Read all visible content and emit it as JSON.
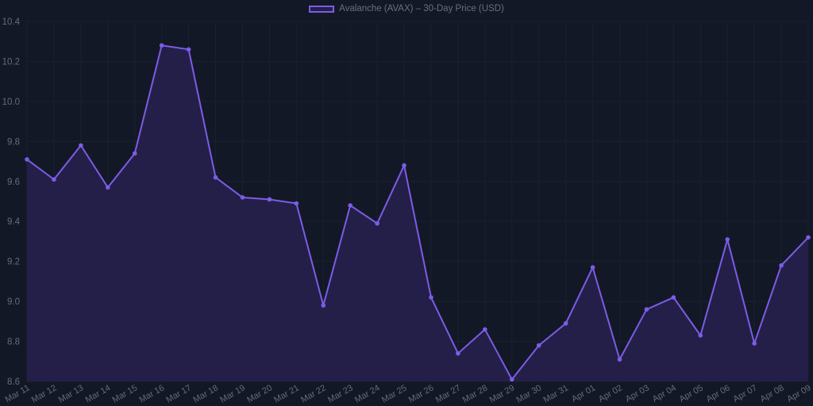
{
  "legend": {
    "label": "Avalanche (AVAX) – 30-Day Price (USD)"
  },
  "colors": {
    "background": "#131826",
    "line": "#7c5ce6",
    "fill": "#241f48",
    "grid": "#1b2030",
    "tick_text": "#676b76"
  },
  "chart_data": {
    "type": "area",
    "title": "",
    "series": [
      {
        "name": "Avalanche (AVAX) – 30-Day Price (USD)",
        "values": [
          9.71,
          9.61,
          9.78,
          9.57,
          9.74,
          10.28,
          10.26,
          9.62,
          9.52,
          9.51,
          9.49,
          8.98,
          9.48,
          9.39,
          9.68,
          9.02,
          8.74,
          8.86,
          8.61,
          8.78,
          8.89,
          9.17,
          8.71,
          8.96,
          9.02,
          8.83,
          9.31,
          8.79,
          9.18,
          9.32
        ]
      }
    ],
    "categories": [
      "Mar 11",
      "Mar 12",
      "Mar 13",
      "Mar 14",
      "Mar 15",
      "Mar 16",
      "Mar 17",
      "Mar 18",
      "Mar 19",
      "Mar 20",
      "Mar 21",
      "Mar 22",
      "Mar 23",
      "Mar 24",
      "Mar 25",
      "Mar 26",
      "Mar 27",
      "Mar 28",
      "Mar 29",
      "Mar 30",
      "Mar 31",
      "Apr 01",
      "Apr 02",
      "Apr 03",
      "Apr 04",
      "Apr 05",
      "Apr 06",
      "Apr 07",
      "Apr 08",
      "Apr 09"
    ],
    "xlabel": "",
    "ylabel": "",
    "ylim": [
      8.6,
      10.4
    ],
    "yticks": [
      "10.4",
      "10.2",
      "10.0",
      "9.8",
      "9.6",
      "9.4",
      "9.2",
      "9.0",
      "8.8",
      "8.6"
    ],
    "grid": true,
    "legend_position": "top"
  }
}
